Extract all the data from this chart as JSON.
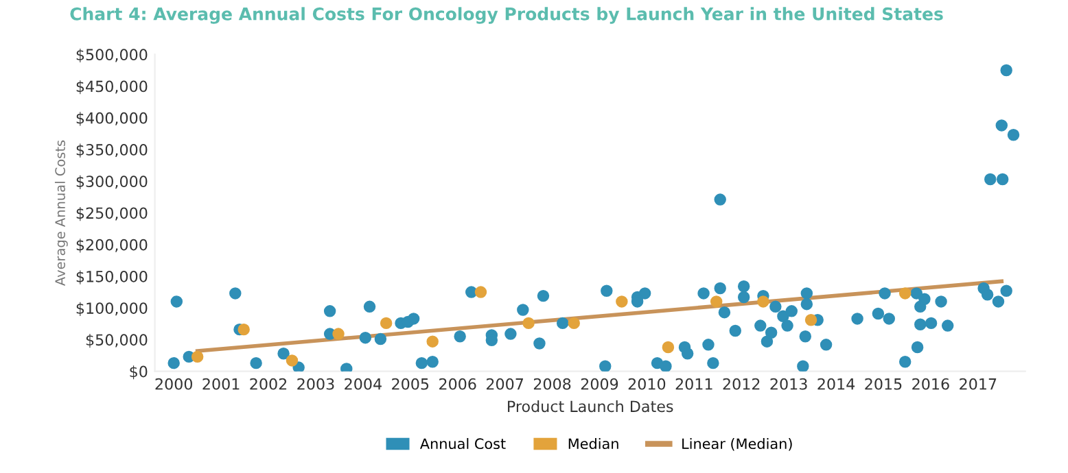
{
  "chart_data": {
    "type": "scatter",
    "title": "Chart 4: Average Annual Costs For Oncology Products by Launch Year in the United States",
    "xlabel": "Product Launch Dates",
    "ylabel": "Average Annual Costs",
    "xlim": [
      1999.6,
      2018.0
    ],
    "xticks": [
      2000,
      2001,
      2002,
      2003,
      2004,
      2005,
      2006,
      2007,
      2008,
      2009,
      2010,
      2011,
      2012,
      2013,
      2014,
      2015,
      2016,
      2017
    ],
    "ylim": [
      0,
      500000
    ],
    "yticks": [
      {
        "value": 0,
        "label": "$0"
      },
      {
        "value": 50000,
        "label": "$50,000"
      },
      {
        "value": 100000,
        "label": "$100,000"
      },
      {
        "value": 150000,
        "label": "$150,000"
      },
      {
        "value": 200000,
        "label": "$200,000"
      },
      {
        "value": 250000,
        "label": "$250,000"
      },
      {
        "value": 300000,
        "label": "$300,000"
      },
      {
        "value": 350000,
        "label": "$350,000"
      },
      {
        "value": 400000,
        "label": "$400,000"
      },
      {
        "value": 450000,
        "label": "$450,000"
      },
      {
        "value": 500000,
        "label": "$500,000"
      }
    ],
    "grid": false,
    "legend": "bottom",
    "series": [
      {
        "name": "Annual Cost",
        "marker": "circle",
        "color": "#2f8fb7",
        "x": [
          2000.06,
          2000.0,
          2000.32,
          2001.3,
          2001.39,
          2001.74,
          2002.32,
          2002.64,
          2003.3,
          2003.3,
          2003.65,
          2004.14,
          2004.05,
          2004.37,
          2004.8,
          2004.95,
          2005.07,
          2005.24,
          2005.47,
          2006.05,
          2006.29,
          2006.72,
          2006.72,
          2007.12,
          2007.38,
          2007.81,
          2007.73,
          2008.22,
          2009.12,
          2009.15,
          2009.8,
          2009.8,
          2009.96,
          2010.22,
          2010.4,
          2010.8,
          2010.86,
          2011.2,
          2011.3,
          2011.4,
          2011.55,
          2011.64,
          2011.87,
          2012.05,
          2012.05,
          2012.4,
          2012.46,
          2012.54,
          2012.63,
          2012.72,
          2012.88,
          2012.97,
          2013.06,
          2013.3,
          2013.35,
          2013.38,
          2013.38,
          2013.61,
          2013.79,
          2014.45,
          2014.89,
          2015.03,
          2015.12,
          2015.46,
          2015.7,
          2015.72,
          2015.78,
          2015.78,
          2015.87,
          2016.01,
          2016.22,
          2016.36,
          2017.12,
          2017.2,
          2017.43,
          2017.6,
          2017.6,
          2017.5,
          2017.75,
          2017.26,
          2017.52,
          2011.55
        ],
        "values": [
          110000,
          13000,
          23000,
          123000,
          66000,
          13000,
          28000,
          6000,
          95000,
          59000,
          4000,
          102000,
          53000,
          51000,
          76000,
          78000,
          83000,
          13000,
          15000,
          55000,
          125000,
          57000,
          49000,
          59000,
          97000,
          119000,
          44000,
          76000,
          8000,
          127000,
          117000,
          110000,
          123000,
          13000,
          8000,
          38000,
          28000,
          123000,
          42000,
          13000,
          131000,
          93000,
          64000,
          134000,
          117000,
          72000,
          119000,
          47000,
          61000,
          102000,
          87000,
          72000,
          95000,
          8000,
          55000,
          123000,
          106000,
          81000,
          42000,
          83000,
          91000,
          123000,
          83000,
          15000,
          123000,
          38000,
          102000,
          74000,
          114000,
          76000,
          110000,
          72000,
          131000,
          121000,
          110000,
          127000,
          475000,
          388000,
          373000,
          303000,
          303000,
          271000
        ]
      },
      {
        "name": "Median",
        "marker": "circle",
        "color": "#e3a33b",
        "x": [
          2000.5,
          2001.48,
          2002.5,
          2003.48,
          2004.49,
          2005.47,
          2006.49,
          2007.5,
          2008.46,
          2009.47,
          2010.45,
          2011.47,
          2012.46,
          2013.47,
          2015.46
        ],
        "values": [
          23000,
          66000,
          17000,
          59000,
          76000,
          47000,
          125000,
          76000,
          76000,
          110000,
          38000,
          110000,
          110000,
          81000,
          123000
        ]
      },
      {
        "name": "Linear (Median)",
        "type": "line",
        "color": "#c8935a",
        "marker": "none",
        "line_style": "solid",
        "x": [
          2000.5,
          2017.5
        ],
        "values": [
          32000,
          142000
        ]
      }
    ]
  }
}
